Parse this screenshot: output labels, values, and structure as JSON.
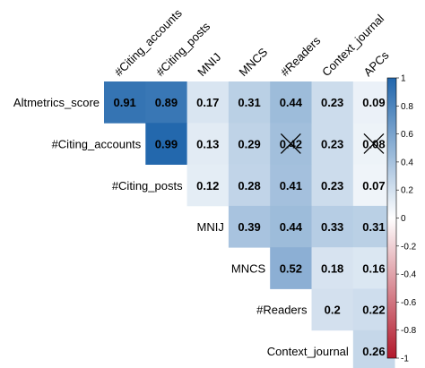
{
  "chart_data": {
    "type": "heatmap",
    "variables": [
      "Altmetrics_score",
      "#Citing_accounts",
      "#Citing_posts",
      "MNIJ",
      "MNCS",
      "#Readers",
      "Context_journal",
      "APCs"
    ],
    "row_labels": [
      "Altmetrics_score",
      "#Citing_accounts",
      "#Citing_posts",
      "MNIJ",
      "MNCS",
      "#Readers",
      "Context_journal"
    ],
    "col_labels": [
      "#Citing_accounts",
      "#Citing_posts",
      "MNIJ",
      "MNCS",
      "#Readers",
      "Context_journal",
      "APCs"
    ],
    "values": [
      [
        0.91,
        0.89,
        0.17,
        0.31,
        0.44,
        0.23,
        0.09
      ],
      [
        null,
        0.99,
        0.13,
        0.29,
        0.42,
        0.23,
        0.08
      ],
      [
        null,
        null,
        0.12,
        0.28,
        0.41,
        0.23,
        0.07
      ],
      [
        null,
        null,
        null,
        0.39,
        0.44,
        0.33,
        0.31
      ],
      [
        null,
        null,
        null,
        null,
        0.52,
        0.18,
        0.16
      ],
      [
        null,
        null,
        null,
        null,
        null,
        0.2,
        0.22
      ],
      [
        null,
        null,
        null,
        null,
        null,
        null,
        0.26
      ]
    ],
    "labels": [
      [
        "0.91",
        "0.89",
        "0.17",
        "0.31",
        "0.44",
        "0.23",
        "0.09"
      ],
      [
        null,
        "0.99",
        "0.13",
        "0.29",
        "0.42",
        "0.23",
        "0.08"
      ],
      [
        null,
        null,
        "0.12",
        "0.28",
        "0.41",
        "0.23",
        "0.07"
      ],
      [
        null,
        null,
        null,
        "0.39",
        "0.44",
        "0.33",
        "0.31"
      ],
      [
        null,
        null,
        null,
        null,
        "0.52",
        "0.18",
        "0.16"
      ],
      [
        null,
        null,
        null,
        null,
        null,
        "0.2",
        "0.22"
      ],
      [
        null,
        null,
        null,
        null,
        null,
        null,
        "0.26"
      ]
    ],
    "insignificant": [
      [
        1,
        4
      ],
      [
        1,
        6
      ]
    ],
    "color_scale": {
      "min": -1,
      "max": 1,
      "low_color": "#b2182b",
      "mid_color": "#ffffff",
      "high_color": "#2166ac"
    },
    "colorbar_ticks": [
      "1",
      "0.8",
      "0.6",
      "0.4",
      "0.2",
      "0",
      "-0.2",
      "-0.4",
      "-0.6",
      "-0.8",
      "-1"
    ],
    "legend_position": "right"
  }
}
